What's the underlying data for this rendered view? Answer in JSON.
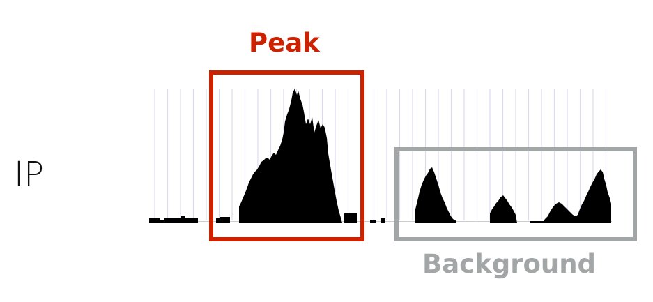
{
  "track_label": "IP",
  "peak": {
    "label": "Peak",
    "color": "#cc2200"
  },
  "background": {
    "label": "Background",
    "color": "#a3a6a6"
  },
  "signal_color": "#000000",
  "gridline_color": "#dcdcf0"
}
